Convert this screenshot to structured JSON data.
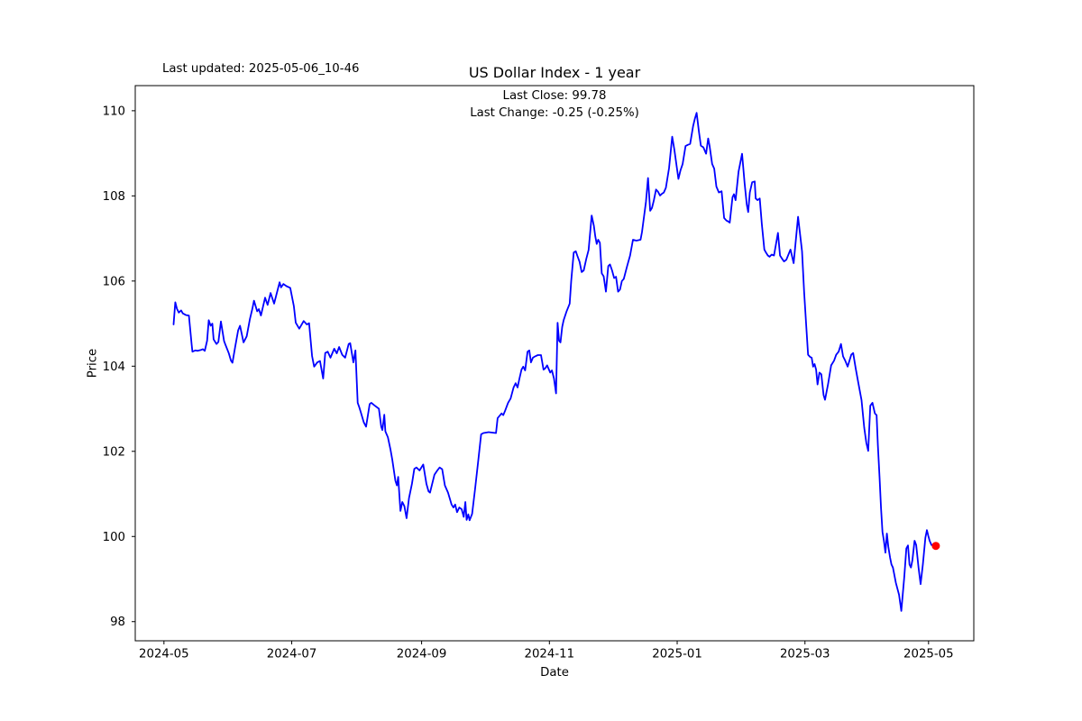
{
  "header": {
    "last_updated": "Last updated: 2025-05-06_10-46"
  },
  "chart_data": {
    "type": "line",
    "title": "US Dollar Index - 1 year",
    "subtitle_line1": "Last Close: 99.78",
    "subtitle_line2": "Last Change: -0.25 (-0.25%)",
    "xlabel": "Date",
    "ylabel": "Price",
    "last_close": 99.78,
    "last_change": "-0.25 (-0.25%)",
    "line_color": "#0000ff",
    "marker_color": "#ff0000",
    "axis_color": "#000000",
    "background_color": "#ffffff",
    "legend": "none",
    "grid": false,
    "x_unit": "days since 2024-05-01",
    "xlim": [
      -13.7,
      386.6
    ],
    "ylim": [
      97.55,
      110.59
    ],
    "y_ticks": [
      98,
      100,
      102,
      104,
      106,
      108,
      110
    ],
    "x_ticks": [
      {
        "day": 0,
        "label": "2024-05"
      },
      {
        "day": 61,
        "label": "2024-07"
      },
      {
        "day": 123,
        "label": "2024-09"
      },
      {
        "day": 184,
        "label": "2024-11"
      },
      {
        "day": 245,
        "label": "2025-01"
      },
      {
        "day": 306,
        "label": "2025-03"
      },
      {
        "day": 365,
        "label": "2025-05"
      }
    ],
    "points": [
      [
        4.6,
        104.98
      ],
      [
        5.4,
        105.5
      ],
      [
        6.2,
        105.35
      ],
      [
        7.1,
        105.26
      ],
      [
        8.2,
        105.31
      ],
      [
        9.0,
        105.24
      ],
      [
        10.5,
        105.2
      ],
      [
        11.9,
        105.19
      ],
      [
        13.2,
        104.52
      ],
      [
        13.6,
        104.34
      ],
      [
        15.0,
        104.37
      ],
      [
        16.0,
        104.36
      ],
      [
        17.5,
        104.38
      ],
      [
        18.6,
        104.4
      ],
      [
        19.5,
        104.36
      ],
      [
        20.6,
        104.6
      ],
      [
        21.4,
        105.08
      ],
      [
        22.3,
        104.95
      ],
      [
        23.1,
        105.0
      ],
      [
        23.7,
        104.63
      ],
      [
        25.1,
        104.52
      ],
      [
        26.0,
        104.57
      ],
      [
        27.2,
        105.05
      ],
      [
        28.7,
        104.59
      ],
      [
        29.4,
        104.5
      ],
      [
        31.0,
        104.3
      ],
      [
        32.0,
        104.13
      ],
      [
        32.7,
        104.08
      ],
      [
        34.0,
        104.45
      ],
      [
        35.4,
        104.84
      ],
      [
        36.3,
        104.95
      ],
      [
        38.0,
        104.56
      ],
      [
        39.5,
        104.7
      ],
      [
        41.0,
        105.1
      ],
      [
        42.2,
        105.35
      ],
      [
        43.0,
        105.54
      ],
      [
        44.5,
        105.29
      ],
      [
        45.3,
        105.34
      ],
      [
        46.3,
        105.19
      ],
      [
        48.3,
        105.61
      ],
      [
        49.5,
        105.44
      ],
      [
        50.9,
        105.72
      ],
      [
        52.6,
        105.47
      ],
      [
        55.2,
        105.97
      ],
      [
        55.9,
        105.85
      ],
      [
        57.0,
        105.93
      ],
      [
        58.5,
        105.88
      ],
      [
        60.3,
        105.84
      ],
      [
        62.0,
        105.41
      ],
      [
        62.9,
        105.02
      ],
      [
        64.6,
        104.88
      ],
      [
        66.7,
        105.06
      ],
      [
        68.2,
        104.98
      ],
      [
        69.3,
        105.01
      ],
      [
        70.7,
        104.24
      ],
      [
        71.7,
        103.99
      ],
      [
        73.2,
        104.09
      ],
      [
        74.5,
        104.12
      ],
      [
        76.0,
        103.71
      ],
      [
        77.0,
        104.31
      ],
      [
        78.2,
        104.34
      ],
      [
        79.5,
        104.2
      ],
      [
        81.3,
        104.41
      ],
      [
        82.5,
        104.3
      ],
      [
        83.6,
        104.45
      ],
      [
        85.1,
        104.27
      ],
      [
        86.5,
        104.2
      ],
      [
        88.2,
        104.52
      ],
      [
        88.9,
        104.54
      ],
      [
        90.4,
        104.09
      ],
      [
        91.4,
        104.37
      ],
      [
        92.5,
        103.14
      ],
      [
        93.2,
        103.04
      ],
      [
        93.9,
        102.93
      ],
      [
        95.4,
        102.68
      ],
      [
        96.5,
        102.58
      ],
      [
        98.2,
        103.11
      ],
      [
        99.0,
        103.14
      ],
      [
        100.5,
        103.08
      ],
      [
        102.6,
        103.0
      ],
      [
        103.7,
        102.58
      ],
      [
        104.3,
        102.5
      ],
      [
        105.2,
        102.86
      ],
      [
        105.7,
        102.47
      ],
      [
        106.9,
        102.33
      ],
      [
        108.1,
        102.05
      ],
      [
        109.0,
        101.8
      ],
      [
        110.5,
        101.31
      ],
      [
        111.2,
        101.2
      ],
      [
        111.8,
        101.4
      ],
      [
        112.9,
        100.6
      ],
      [
        113.8,
        100.81
      ],
      [
        114.8,
        100.71
      ],
      [
        115.8,
        100.43
      ],
      [
        117.0,
        100.9
      ],
      [
        118.4,
        101.24
      ],
      [
        119.5,
        101.59
      ],
      [
        120.5,
        101.62
      ],
      [
        122.0,
        101.55
      ],
      [
        123.8,
        101.69
      ],
      [
        125.3,
        101.24
      ],
      [
        126.3,
        101.06
      ],
      [
        127.0,
        101.03
      ],
      [
        129.1,
        101.45
      ],
      [
        130.5,
        101.55
      ],
      [
        131.6,
        101.62
      ],
      [
        132.8,
        101.58
      ],
      [
        134.1,
        101.2
      ],
      [
        135.6,
        101.03
      ],
      [
        137.3,
        100.75
      ],
      [
        138.2,
        100.68
      ],
      [
        139.0,
        100.75
      ],
      [
        139.9,
        100.57
      ],
      [
        141.0,
        100.68
      ],
      [
        142.1,
        100.64
      ],
      [
        143.1,
        100.46
      ],
      [
        143.9,
        100.81
      ],
      [
        144.5,
        100.39
      ],
      [
        145.3,
        100.52
      ],
      [
        145.9,
        100.38
      ],
      [
        147.1,
        100.53
      ],
      [
        148.5,
        101.1
      ],
      [
        150.0,
        101.76
      ],
      [
        151.4,
        102.4
      ],
      [
        152.5,
        102.43
      ],
      [
        155.0,
        102.45
      ],
      [
        158.5,
        102.43
      ],
      [
        159.3,
        102.78
      ],
      [
        161.2,
        102.89
      ],
      [
        162.0,
        102.85
      ],
      [
        162.9,
        102.96
      ],
      [
        164.3,
        103.14
      ],
      [
        165.5,
        103.24
      ],
      [
        166.9,
        103.5
      ],
      [
        167.9,
        103.6
      ],
      [
        168.8,
        103.5
      ],
      [
        169.7,
        103.71
      ],
      [
        170.7,
        103.92
      ],
      [
        171.5,
        103.99
      ],
      [
        172.4,
        103.9
      ],
      [
        173.6,
        104.34
      ],
      [
        174.4,
        104.37
      ],
      [
        175.2,
        104.09
      ],
      [
        176.1,
        104.2
      ],
      [
        177.2,
        104.23
      ],
      [
        178.5,
        104.26
      ],
      [
        180.0,
        104.26
      ],
      [
        181.2,
        103.92
      ],
      [
        182.0,
        103.95
      ],
      [
        182.9,
        104.02
      ],
      [
        184.4,
        103.85
      ],
      [
        185.2,
        103.9
      ],
      [
        186.2,
        103.71
      ],
      [
        187.2,
        103.36
      ],
      [
        187.9,
        105.02
      ],
      [
        188.6,
        104.6
      ],
      [
        189.3,
        104.56
      ],
      [
        190.1,
        104.92
      ],
      [
        190.8,
        105.08
      ],
      [
        192.2,
        105.29
      ],
      [
        193.7,
        105.47
      ],
      [
        194.4,
        106.0
      ],
      [
        195.6,
        106.67
      ],
      [
        196.6,
        106.7
      ],
      [
        197.3,
        106.6
      ],
      [
        198.4,
        106.45
      ],
      [
        199.4,
        106.21
      ],
      [
        200.4,
        106.25
      ],
      [
        201.6,
        106.52
      ],
      [
        202.7,
        106.73
      ],
      [
        204.2,
        107.54
      ],
      [
        205.2,
        107.3
      ],
      [
        205.9,
        107.05
      ],
      [
        206.6,
        106.87
      ],
      [
        207.3,
        106.97
      ],
      [
        208.1,
        106.9
      ],
      [
        209.0,
        106.18
      ],
      [
        209.9,
        106.11
      ],
      [
        211.0,
        105.75
      ],
      [
        212.1,
        106.35
      ],
      [
        212.9,
        106.39
      ],
      [
        213.9,
        106.25
      ],
      [
        214.9,
        106.07
      ],
      [
        215.8,
        106.1
      ],
      [
        216.8,
        105.75
      ],
      [
        217.7,
        105.8
      ],
      [
        218.6,
        106.0
      ],
      [
        219.5,
        106.05
      ],
      [
        221.1,
        106.35
      ],
      [
        222.5,
        106.6
      ],
      [
        223.9,
        106.97
      ],
      [
        225.5,
        106.95
      ],
      [
        227.5,
        106.97
      ],
      [
        228.2,
        107.15
      ],
      [
        230.1,
        107.86
      ],
      [
        231.1,
        108.42
      ],
      [
        232.1,
        107.65
      ],
      [
        233.0,
        107.72
      ],
      [
        233.9,
        107.9
      ],
      [
        234.9,
        108.15
      ],
      [
        235.8,
        108.1
      ],
      [
        236.8,
        108.01
      ],
      [
        237.7,
        108.05
      ],
      [
        238.6,
        108.08
      ],
      [
        239.6,
        108.19
      ],
      [
        241.1,
        108.65
      ],
      [
        242.6,
        109.39
      ],
      [
        243.6,
        109.1
      ],
      [
        245.6,
        108.4
      ],
      [
        246.6,
        108.6
      ],
      [
        247.6,
        108.75
      ],
      [
        249.0,
        109.17
      ],
      [
        250.1,
        109.2
      ],
      [
        251.2,
        109.22
      ],
      [
        252.6,
        109.64
      ],
      [
        253.4,
        109.8
      ],
      [
        254.3,
        109.95
      ],
      [
        255.4,
        109.5
      ],
      [
        256.3,
        109.18
      ],
      [
        257.5,
        109.14
      ],
      [
        258.8,
        108.99
      ],
      [
        259.8,
        109.35
      ],
      [
        260.5,
        109.17
      ],
      [
        261.7,
        108.75
      ],
      [
        262.7,
        108.64
      ],
      [
        263.7,
        108.22
      ],
      [
        264.9,
        108.08
      ],
      [
        266.2,
        108.11
      ],
      [
        267.4,
        107.48
      ],
      [
        268.5,
        107.42
      ],
      [
        269.3,
        107.4
      ],
      [
        270.1,
        107.37
      ],
      [
        271.4,
        107.97
      ],
      [
        272.1,
        108.04
      ],
      [
        272.9,
        107.9
      ],
      [
        274.3,
        108.57
      ],
      [
        276.0,
        108.99
      ],
      [
        277.2,
        108.3
      ],
      [
        278.2,
        107.8
      ],
      [
        278.9,
        107.62
      ],
      [
        279.7,
        108.08
      ],
      [
        280.8,
        108.32
      ],
      [
        282.0,
        108.34
      ],
      [
        282.5,
        107.94
      ],
      [
        283.4,
        107.9
      ],
      [
        284.4,
        107.94
      ],
      [
        285.4,
        107.34
      ],
      [
        286.6,
        106.74
      ],
      [
        287.4,
        106.67
      ],
      [
        288.3,
        106.6
      ],
      [
        289.1,
        106.57
      ],
      [
        290.1,
        106.62
      ],
      [
        291.2,
        106.6
      ],
      [
        293.1,
        107.13
      ],
      [
        294.1,
        106.6
      ],
      [
        295.0,
        106.53
      ],
      [
        296.0,
        106.46
      ],
      [
        297.1,
        106.5
      ],
      [
        299.1,
        106.74
      ],
      [
        300.6,
        106.42
      ],
      [
        302.7,
        107.51
      ],
      [
        304.6,
        106.7
      ],
      [
        305.6,
        105.75
      ],
      [
        306.6,
        104.97
      ],
      [
        307.5,
        104.27
      ],
      [
        308.4,
        104.22
      ],
      [
        309.2,
        104.2
      ],
      [
        309.9,
        103.99
      ],
      [
        310.6,
        104.05
      ],
      [
        311.3,
        103.92
      ],
      [
        312.0,
        103.57
      ],
      [
        312.9,
        103.85
      ],
      [
        313.8,
        103.81
      ],
      [
        314.9,
        103.32
      ],
      [
        315.6,
        103.21
      ],
      [
        317.0,
        103.57
      ],
      [
        318.5,
        104.02
      ],
      [
        319.9,
        104.13
      ],
      [
        320.9,
        104.27
      ],
      [
        322.1,
        104.34
      ],
      [
        323.2,
        104.52
      ],
      [
        324.2,
        104.23
      ],
      [
        325.2,
        104.13
      ],
      [
        326.4,
        103.99
      ],
      [
        328.1,
        104.27
      ],
      [
        329.0,
        104.31
      ],
      [
        330.2,
        103.95
      ],
      [
        331.5,
        103.6
      ],
      [
        333.0,
        103.2
      ],
      [
        334.3,
        102.55
      ],
      [
        335.3,
        102.2
      ],
      [
        336.2,
        102.01
      ],
      [
        337.2,
        103.07
      ],
      [
        338.2,
        103.14
      ],
      [
        339.4,
        102.89
      ],
      [
        340.2,
        102.85
      ],
      [
        340.8,
        102.15
      ],
      [
        341.6,
        101.38
      ],
      [
        342.3,
        100.67
      ],
      [
        343.0,
        100.11
      ],
      [
        343.7,
        99.9
      ],
      [
        344.4,
        99.62
      ],
      [
        345.1,
        100.07
      ],
      [
        345.8,
        99.76
      ],
      [
        346.6,
        99.51
      ],
      [
        347.3,
        99.34
      ],
      [
        348.0,
        99.27
      ],
      [
        349.4,
        98.91
      ],
      [
        350.9,
        98.63
      ],
      [
        352.0,
        98.25
      ],
      [
        353.4,
        99.05
      ],
      [
        354.4,
        99.72
      ],
      [
        355.2,
        99.79
      ],
      [
        355.9,
        99.34
      ],
      [
        356.6,
        99.27
      ],
      [
        357.3,
        99.44
      ],
      [
        358.3,
        99.9
      ],
      [
        359.1,
        99.8
      ],
      [
        360.2,
        99.27
      ],
      [
        361.2,
        98.88
      ],
      [
        362.3,
        99.34
      ],
      [
        363.5,
        99.97
      ],
      [
        364.2,
        100.15
      ],
      [
        364.9,
        100.01
      ],
      [
        365.5,
        99.9
      ],
      [
        366.4,
        99.8
      ],
      [
        368.5,
        99.78
      ]
    ]
  }
}
